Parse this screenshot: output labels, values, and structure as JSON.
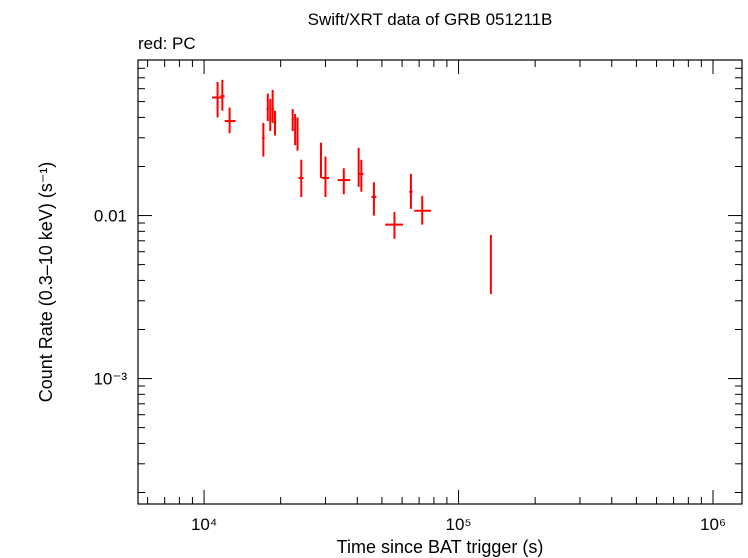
{
  "chart_data": {
    "type": "scatter",
    "title": "Swift/XRT data of GRB 051211B",
    "subtitle": "red: PC",
    "xlabel": "Time since BAT trigger (s)",
    "ylabel": "Count Rate (0.3–10 keV) (s⁻¹)",
    "x_scale": "log",
    "y_scale": "log",
    "xlim": [
      5500,
      1300000
    ],
    "ylim": [
      0.00017,
      0.09
    ],
    "x_ticks": [
      {
        "value": 10000,
        "label": "10⁴"
      },
      {
        "value": 100000,
        "label": "10⁵"
      },
      {
        "value": 1000000,
        "label": "10⁶"
      }
    ],
    "y_ticks": [
      {
        "value": 0.01,
        "label": "0.01"
      },
      {
        "value": 0.001,
        "label": "10⁻³"
      }
    ],
    "grid": false,
    "color": "#ff0000",
    "series": [
      {
        "name": "PC",
        "color": "#ff0000",
        "points": [
          {
            "x": 11300,
            "xmin": 10750,
            "xmax": 11850,
            "y": 0.053,
            "ymin": 0.04,
            "ymax": 0.066
          },
          {
            "x": 11800,
            "xmin": 11600,
            "xmax": 12050,
            "y": 0.054,
            "ymin": 0.044,
            "ymax": 0.068
          },
          {
            "x": 12600,
            "xmin": 12050,
            "xmax": 13300,
            "y": 0.038,
            "ymin": 0.032,
            "ymax": 0.046
          },
          {
            "x": 17100,
            "xmin": 16900,
            "xmax": 17300,
            "y": 0.03,
            "ymin": 0.023,
            "ymax": 0.037
          },
          {
            "x": 17800,
            "xmin": 17600,
            "xmax": 18000,
            "y": 0.045,
            "ymin": 0.038,
            "ymax": 0.056
          },
          {
            "x": 18200,
            "xmin": 18050,
            "xmax": 18350,
            "y": 0.039,
            "ymin": 0.033,
            "ymax": 0.052
          },
          {
            "x": 18600,
            "xmin": 18400,
            "xmax": 18800,
            "y": 0.045,
            "ymin": 0.037,
            "ymax": 0.059
          },
          {
            "x": 19000,
            "xmin": 18800,
            "xmax": 19200,
            "y": 0.037,
            "ymin": 0.031,
            "ymax": 0.044
          },
          {
            "x": 22300,
            "xmin": 22100,
            "xmax": 22500,
            "y": 0.039,
            "ymin": 0.033,
            "ymax": 0.045
          },
          {
            "x": 22800,
            "xmin": 22600,
            "xmax": 23000,
            "y": 0.034,
            "ymin": 0.027,
            "ymax": 0.042
          },
          {
            "x": 23300,
            "xmin": 23100,
            "xmax": 23500,
            "y": 0.033,
            "ymin": 0.025,
            "ymax": 0.04
          },
          {
            "x": 24100,
            "xmin": 23500,
            "xmax": 24600,
            "y": 0.017,
            "ymin": 0.013,
            "ymax": 0.022
          },
          {
            "x": 28800,
            "xmin": 28600,
            "xmax": 29000,
            "y": 0.022,
            "ymin": 0.017,
            "ymax": 0.028
          },
          {
            "x": 30000,
            "xmin": 29000,
            "xmax": 31000,
            "y": 0.017,
            "ymin": 0.013,
            "ymax": 0.023
          },
          {
            "x": 35400,
            "xmin": 33500,
            "xmax": 37500,
            "y": 0.0165,
            "ymin": 0.0135,
            "ymax": 0.0195
          },
          {
            "x": 40500,
            "xmin": 40300,
            "xmax": 40700,
            "y": 0.02,
            "ymin": 0.015,
            "ymax": 0.026
          },
          {
            "x": 41500,
            "xmin": 40700,
            "xmax": 42300,
            "y": 0.018,
            "ymin": 0.014,
            "ymax": 0.022
          },
          {
            "x": 46500,
            "xmin": 45500,
            "xmax": 47500,
            "y": 0.013,
            "ymin": 0.01,
            "ymax": 0.016
          },
          {
            "x": 56000,
            "xmin": 51500,
            "xmax": 60500,
            "y": 0.0088,
            "ymin": 0.0072,
            "ymax": 0.0105
          },
          {
            "x": 65000,
            "xmin": 64000,
            "xmax": 66000,
            "y": 0.014,
            "ymin": 0.011,
            "ymax": 0.018
          },
          {
            "x": 72000,
            "xmin": 67000,
            "xmax": 78000,
            "y": 0.0107,
            "ymin": 0.0088,
            "ymax": 0.0132
          },
          {
            "x": 134000,
            "xmin": 133000,
            "xmax": 135000,
            "y": 0.0051,
            "ymin": 0.0033,
            "ymax": 0.0076
          }
        ]
      }
    ]
  }
}
